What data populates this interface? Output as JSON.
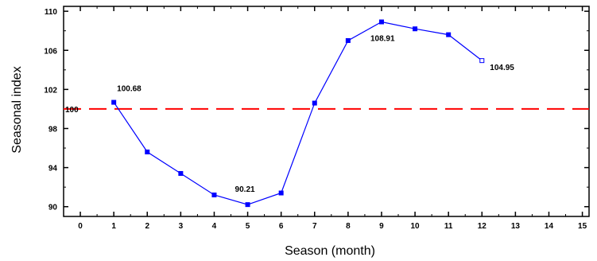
{
  "chart_data": {
    "type": "line",
    "xlabel": "Season (month)",
    "ylabel": "Seasonal index",
    "xlim": [
      -0.5,
      15.2
    ],
    "ylim": [
      89,
      110.5
    ],
    "xticks": [
      0,
      1,
      2,
      3,
      4,
      5,
      6,
      7,
      8,
      9,
      10,
      11,
      12,
      13,
      14,
      15
    ],
    "yticks": [
      90,
      94,
      98,
      102,
      106,
      110
    ],
    "grid": false,
    "series": [
      {
        "x": [
          1,
          2,
          3,
          4,
          5,
          6,
          7,
          8,
          9,
          10,
          11,
          12
        ],
        "values": [
          100.68,
          95.6,
          93.4,
          91.2,
          90.21,
          91.4,
          100.6,
          107.0,
          108.91,
          108.2,
          107.6,
          104.95
        ],
        "color": "#0000ff"
      }
    ],
    "reference_line": {
      "y": 100,
      "label": "100",
      "color": "#ff0000",
      "style": "dashed"
    },
    "annotations": [
      {
        "x": 1,
        "y": 100.68,
        "text": "100.68"
      },
      {
        "x": 5,
        "y": 90.21,
        "text": "90.21"
      },
      {
        "x": 9,
        "y": 108.91,
        "text": "108.91"
      },
      {
        "x": 12,
        "y": 104.95,
        "text": "104.95"
      }
    ]
  }
}
